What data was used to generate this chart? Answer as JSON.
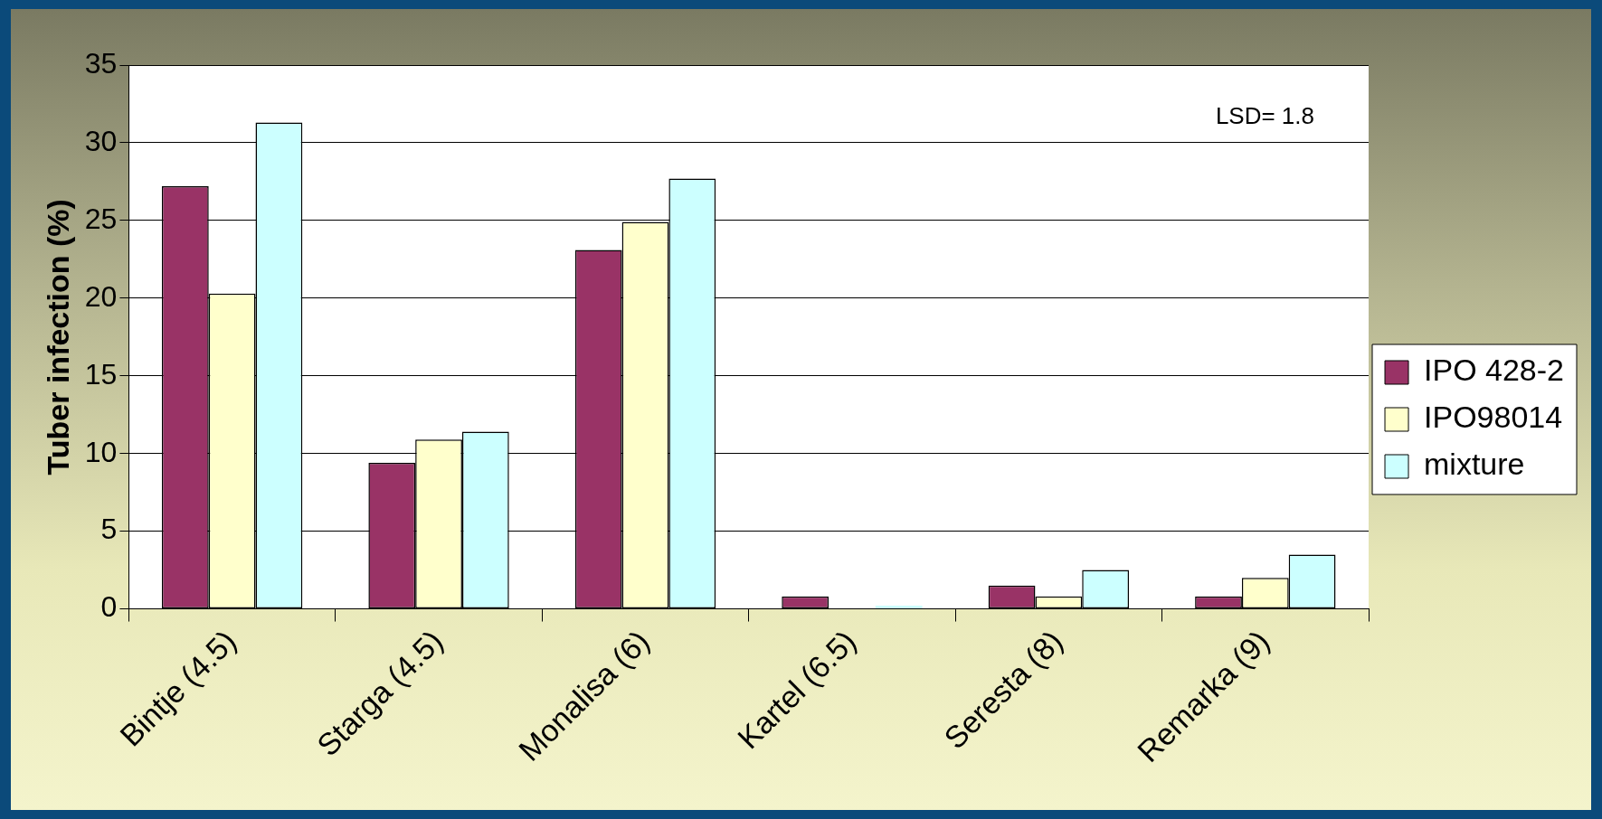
{
  "chart_data": {
    "type": "bar",
    "ylabel": "Tuber infection (%)",
    "categories": [
      "Bintje (4.5)",
      "Starga (4.5)",
      "Monalisa (6)",
      "Kartel (6.5)",
      "Seresta (8)",
      "Remarka (9)"
    ],
    "series": [
      {
        "name": "IPO 428-2",
        "color": "#993366",
        "values": [
          27.2,
          9.4,
          23.1,
          0.8,
          1.5,
          0.8
        ]
      },
      {
        "name": "IPO98014",
        "color": "#ffffcc",
        "values": [
          20.3,
          10.9,
          24.9,
          0,
          0.8,
          2.0
        ]
      },
      {
        "name": "mixture",
        "color": "#ccffff",
        "values": [
          31.3,
          11.4,
          27.7,
          0.2,
          2.5,
          3.5
        ]
      }
    ],
    "ylim": [
      0,
      35
    ],
    "yticks": [
      0,
      5,
      10,
      15,
      20,
      25,
      30,
      35
    ],
    "grid": "y",
    "legend": "right",
    "annotations": [
      "LSD= 1.8"
    ]
  }
}
